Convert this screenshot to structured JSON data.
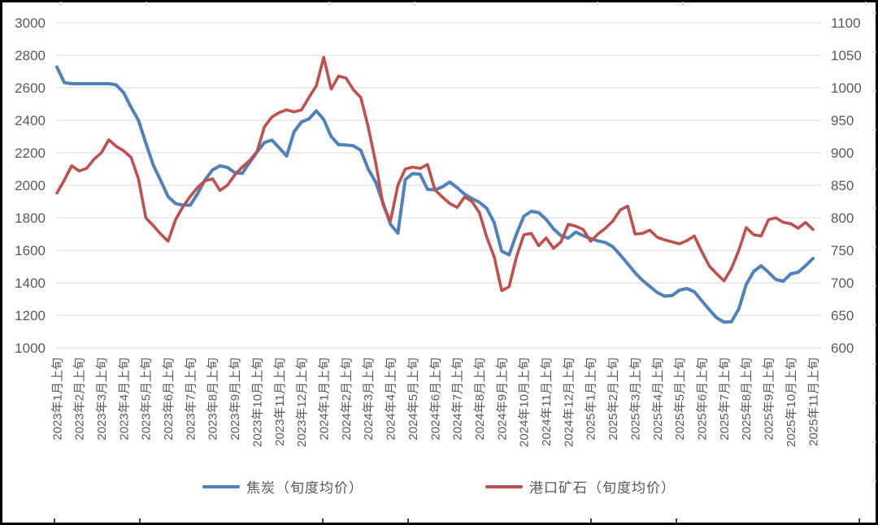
{
  "chart_data": {
    "type": "line",
    "title": "",
    "grid": true,
    "legend_position": "bottom",
    "points_per_month": 3,
    "x_tick_labels": [
      "2023年1月上旬",
      "2023年2月上旬",
      "2023年3月上旬",
      "2023年4月上旬",
      "2023年5月上旬",
      "2023年6月上旬",
      "2023年7月上旬",
      "2023年8月上旬",
      "2023年9月上旬",
      "2023年10月上旬",
      "2023年11月上旬",
      "2023年12月上旬",
      "2024年1月上旬",
      "2024年2月上旬",
      "2024年3月上旬",
      "2024年4月上旬",
      "2024年5月上旬",
      "2024年6月上旬",
      "2024年7月上旬",
      "2024年8月上旬",
      "2024年9月上旬",
      "2024年10月上旬",
      "2024年11月上旬",
      "2024年12月上旬",
      "2025年1月上旬",
      "2025年2月上旬",
      "2025年3月上旬",
      "2025年4月上旬",
      "2025年5月上旬",
      "2025年6月上旬",
      "2025年7月上旬",
      "2025年8月上旬",
      "2025年9月上旬",
      "2025年10月上旬",
      "2025年11月上旬"
    ],
    "left_axis": {
      "min": 1000,
      "max": 3000,
      "step": 200,
      "ticks": [
        3000,
        2800,
        2600,
        2400,
        2200,
        2000,
        1800,
        1600,
        1400,
        1200,
        1000
      ]
    },
    "right_axis": {
      "min": 600,
      "max": 1100,
      "step": 50,
      "ticks": [
        1100,
        1050,
        1000,
        950,
        900,
        850,
        800,
        750,
        700,
        650,
        600
      ]
    },
    "series": [
      {
        "name": "焦炭（旬度均价）",
        "axis": "left",
        "color": "#4F81BD",
        "values": [
          2728,
          2632,
          2625,
          2625,
          2625,
          2625,
          2625,
          2625,
          2618,
          2570,
          2480,
          2400,
          2260,
          2125,
          2030,
          1930,
          1888,
          1878,
          1878,
          1950,
          2035,
          2095,
          2120,
          2110,
          2078,
          2073,
          2140,
          2205,
          2263,
          2278,
          2230,
          2180,
          2330,
          2390,
          2408,
          2458,
          2405,
          2300,
          2250,
          2248,
          2243,
          2215,
          2100,
          2020,
          1890,
          1760,
          1705,
          2035,
          2072,
          2068,
          1975,
          1972,
          1990,
          2020,
          1985,
          1945,
          1918,
          1895,
          1858,
          1770,
          1595,
          1572,
          1700,
          1810,
          1840,
          1832,
          1790,
          1732,
          1690,
          1675,
          1712,
          1690,
          1672,
          1658,
          1648,
          1622,
          1572,
          1517,
          1462,
          1415,
          1378,
          1340,
          1318,
          1322,
          1355,
          1365,
          1345,
          1290,
          1235,
          1185,
          1158,
          1160,
          1240,
          1390,
          1470,
          1505,
          1465,
          1420,
          1410,
          1455,
          1465,
          1505,
          1550
        ]
      },
      {
        "name": "港口矿石（旬度均价）",
        "axis": "right",
        "color": "#C0504D",
        "values": [
          838,
          858,
          880,
          872,
          876,
          890,
          900,
          920,
          910,
          903,
          893,
          860,
          800,
          788,
          775,
          764,
          797,
          817,
          833,
          847,
          857,
          860,
          842,
          850,
          866,
          878,
          888,
          902,
          940,
          955,
          962,
          966,
          963,
          966,
          985,
          1003,
          1047,
          998,
          1018,
          1015,
          997,
          985,
          940,
          885,
          820,
          795,
          850,
          875,
          878,
          876,
          882,
          843,
          832,
          822,
          816,
          832,
          825,
          808,
          770,
          740,
          688,
          694,
          740,
          774,
          776,
          757,
          769,
          753,
          763,
          790,
          787,
          782,
          764,
          775,
          784,
          795,
          812,
          818,
          775,
          776,
          781,
          770,
          766,
          763,
          760,
          765,
          772,
          748,
          726,
          714,
          703,
          722,
          750,
          785,
          774,
          772,
          797,
          800,
          793,
          791,
          784,
          793,
          782
        ]
      }
    ]
  },
  "legend": {
    "items": [
      {
        "label": "焦炭（旬度均价）",
        "color": "#4F81BD"
      },
      {
        "label": "港口矿石（旬度均价）",
        "color": "#C0504D"
      }
    ]
  },
  "style": {
    "gridline_color": "#D9D9D9",
    "axis_text_color": "#595959",
    "border_color": "#000000"
  }
}
